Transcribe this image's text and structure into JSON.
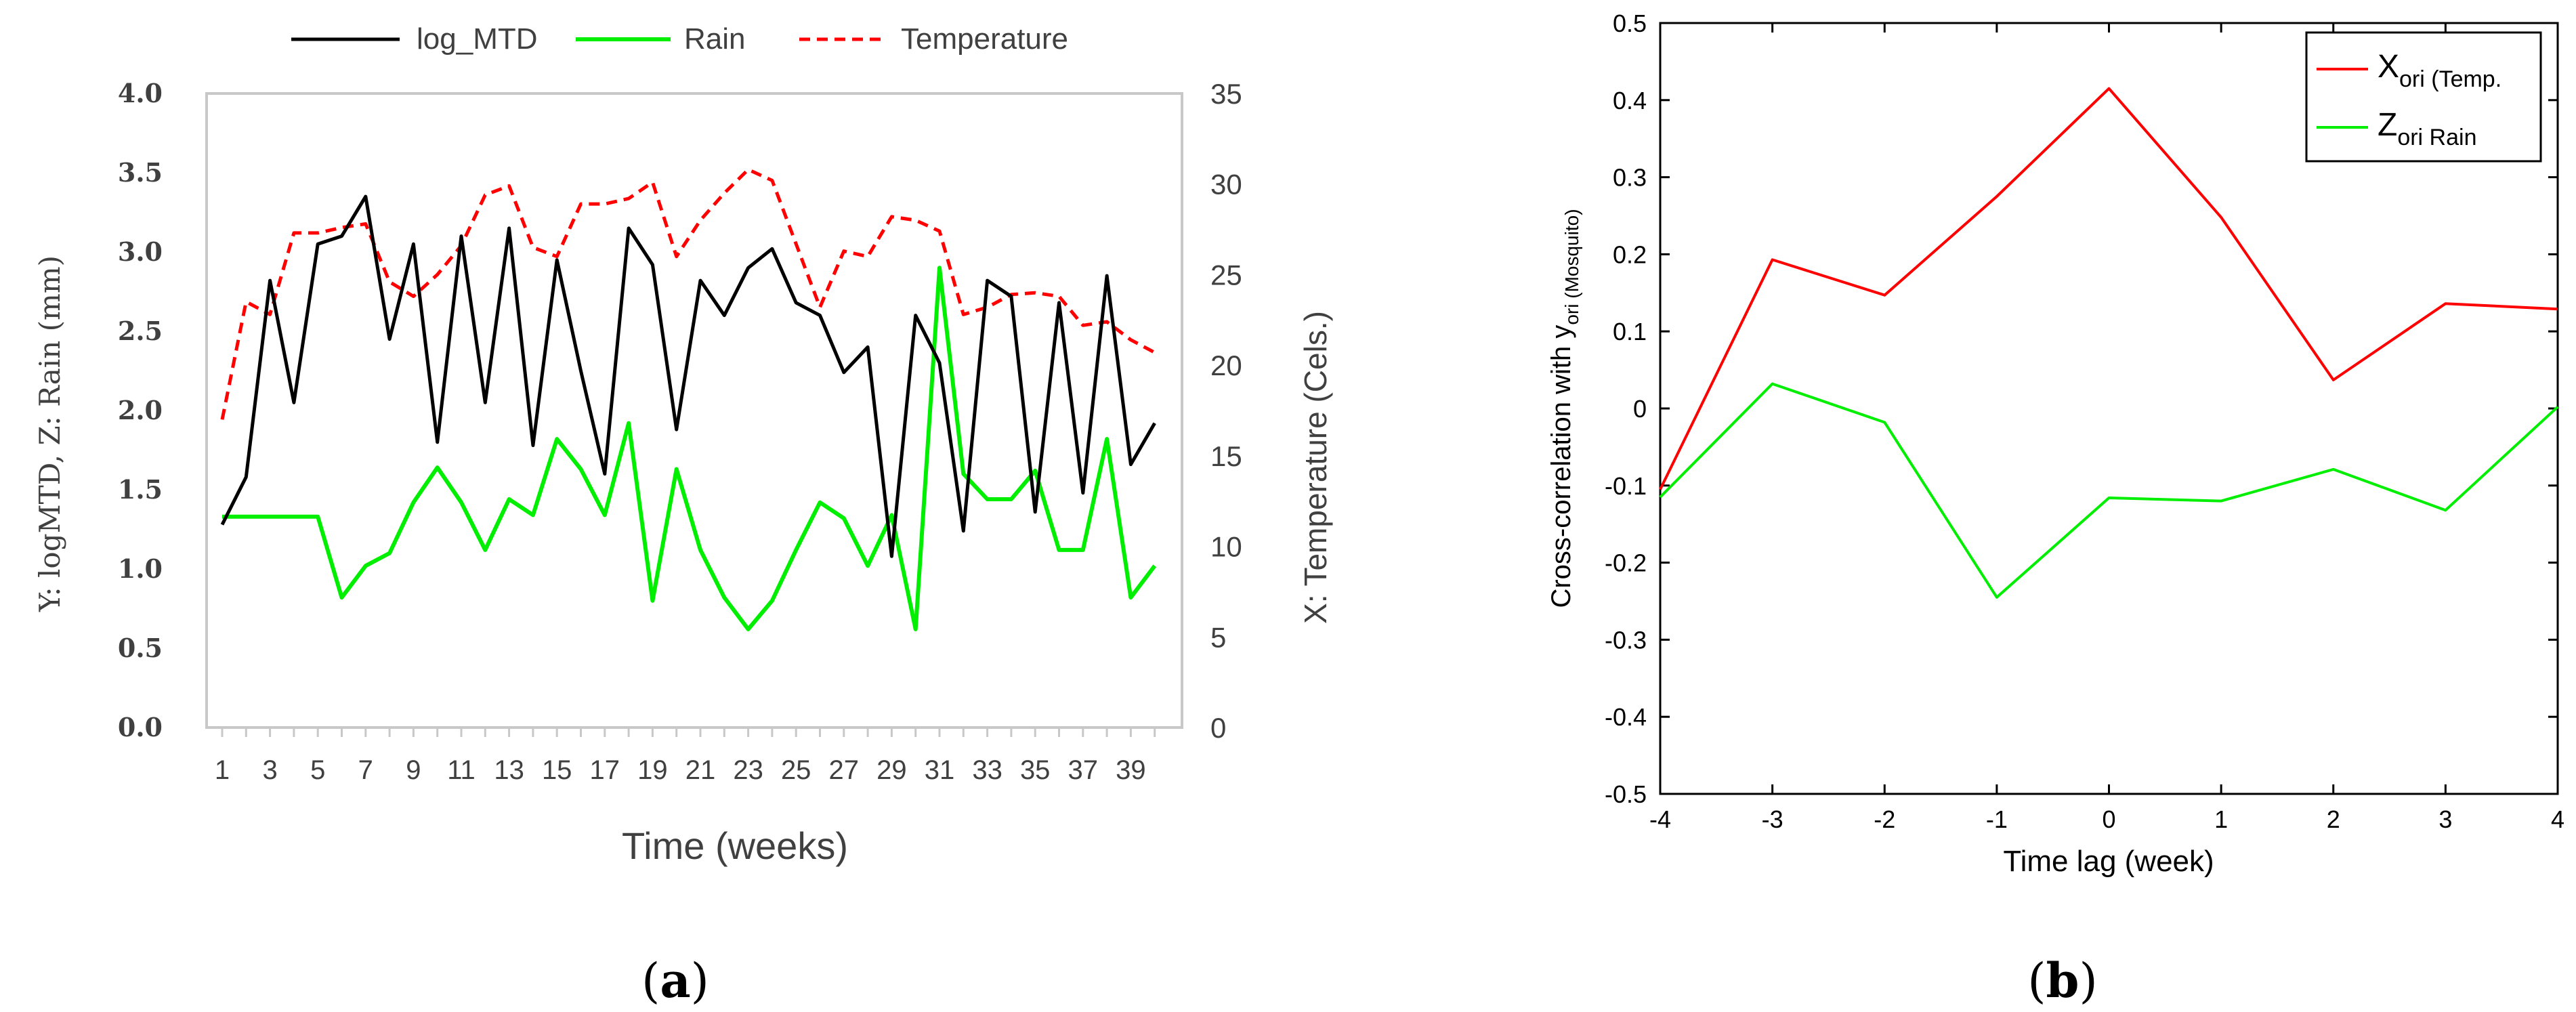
{
  "chart_data": [
    {
      "panel": "a",
      "type": "line",
      "title": "",
      "panel_label": {
        "open": "(",
        "letter": "a",
        "close": ")"
      },
      "xlabel": "Time (weeks)",
      "ylabel": "Y: logMTD, Z: Rain (mm)",
      "y2label": "X: Temperature (Cels.)",
      "ylim": [
        0,
        4
      ],
      "y2lim": [
        0,
        35
      ],
      "x": [
        1,
        2,
        3,
        4,
        5,
        6,
        7,
        8,
        9,
        10,
        11,
        12,
        13,
        14,
        15,
        16,
        17,
        18,
        19,
        20,
        21,
        22,
        23,
        24,
        25,
        26,
        27,
        28,
        29,
        30,
        31,
        32,
        33,
        34,
        35,
        36,
        37,
        38,
        39,
        40
      ],
      "xtick_labels": [
        "1",
        "3",
        "5",
        "7",
        "9",
        "11",
        "13",
        "15",
        "17",
        "19",
        "21",
        "23",
        "25",
        "27",
        "29",
        "31",
        "33",
        "35",
        "37",
        "39"
      ],
      "ytick_labels": [
        "0.0",
        "0.5",
        "1.0",
        "1.5",
        "2.0",
        "2.5",
        "3.0",
        "3.5",
        "4.0"
      ],
      "y2tick_labels": [
        "0",
        "5",
        "10",
        "15",
        "20",
        "25",
        "30",
        "35"
      ],
      "legend_position": "top",
      "series": [
        {
          "name": "log_MTD",
          "axis": "left",
          "color": "#000000",
          "style": "solid",
          "values": [
            1.28,
            1.58,
            2.82,
            2.05,
            3.05,
            3.1,
            3.35,
            2.45,
            3.05,
            1.8,
            3.1,
            2.05,
            3.15,
            1.78,
            2.95,
            2.25,
            1.6,
            3.15,
            2.92,
            1.88,
            2.82,
            2.6,
            2.9,
            3.02,
            2.68,
            2.6,
            2.24,
            2.4,
            1.08,
            2.6,
            2.3,
            1.24,
            2.82,
            2.72,
            1.36,
            2.68,
            1.48,
            2.85,
            1.66,
            1.92
          ]
        },
        {
          "name": "Rain",
          "axis": "left",
          "color": "#00ee00",
          "style": "solid",
          "values": [
            1.33,
            1.33,
            1.33,
            1.33,
            1.33,
            0.82,
            1.02,
            1.1,
            1.42,
            1.64,
            1.42,
            1.12,
            1.44,
            1.34,
            1.82,
            1.63,
            1.34,
            1.92,
            0.8,
            1.63,
            1.12,
            0.82,
            0.62,
            0.8,
            1.12,
            1.42,
            1.32,
            1.02,
            1.34,
            0.62,
            2.9,
            1.6,
            1.44,
            1.44,
            1.62,
            1.12,
            1.12,
            1.82,
            0.82,
            1.02
          ]
        },
        {
          "name": "Temperature",
          "axis": "right",
          "color": "#ff0000",
          "style": "dashed",
          "values": [
            17,
            23.5,
            22.8,
            27.3,
            27.3,
            27.6,
            27.8,
            24.6,
            23.8,
            25,
            26.6,
            29.4,
            29.9,
            26.5,
            26,
            28.9,
            28.9,
            29.2,
            30.1,
            26,
            28,
            29.5,
            30.8,
            30.2,
            26.7,
            23.2,
            26.3,
            26,
            28.2,
            28,
            27.4,
            22.8,
            23.2,
            23.9,
            24,
            23.8,
            22.2,
            22.4,
            21.4,
            20.7
          ]
        }
      ]
    },
    {
      "panel": "b",
      "type": "line",
      "title": "",
      "panel_label": {
        "open": "(",
        "letter": "b",
        "close": ")"
      },
      "xlabel": "Time lag (week)",
      "ylabel": {
        "main": "Cross-correlation with y",
        "sub": "ori (Mosquito)"
      },
      "xlim": [
        -4,
        4
      ],
      "ylim": [
        -0.5,
        0.5
      ],
      "xticks": [
        -4,
        -3,
        -2,
        -1,
        0,
        1,
        2,
        3,
        4
      ],
      "xtick_labels": [
        "-4",
        "-3",
        "-2",
        "-1",
        "0",
        "1",
        "2",
        "3",
        "4"
      ],
      "yticks": [
        -0.5,
        -0.4,
        -0.3,
        -0.2,
        -0.1,
        0,
        0.1,
        0.2,
        0.3,
        0.4,
        0.5
      ],
      "ytick_labels": [
        "-0.5",
        "-0.4",
        "-0.3",
        "-0.2",
        "-0.1",
        "0",
        "0.1",
        "0.2",
        "0.3",
        "0.4",
        "0.5"
      ],
      "grid": false,
      "legend_position": "top-right",
      "series": [
        {
          "name": "X ori (Temp.",
          "legend_main": "X",
          "legend_sub": "ori (Temp.",
          "color": "#ff0000",
          "x": [
            -4,
            -3,
            -2,
            -1,
            0,
            1,
            2,
            3,
            4
          ],
          "values": [
            -0.105,
            0.193,
            0.147,
            0.275,
            0.415,
            0.248,
            0.037,
            0.136,
            0.129
          ]
        },
        {
          "name": "Z ori Rain",
          "legend_main": "Z",
          "legend_sub": "ori Rain",
          "color": "#00ee00",
          "x": [
            -4,
            -3,
            -2,
            -1,
            0,
            1,
            2,
            3,
            4
          ],
          "values": [
            -0.115,
            0.032,
            -0.018,
            -0.245,
            -0.116,
            -0.12,
            -0.079,
            -0.132,
            0.002
          ]
        }
      ]
    }
  ]
}
